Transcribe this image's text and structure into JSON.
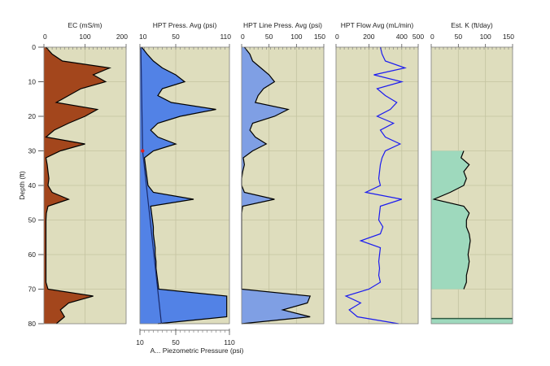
{
  "chart_data": {
    "type": "line",
    "ylabel": "Depth (ft)",
    "ylim": [
      0,
      80
    ],
    "yticks": [
      0,
      10,
      20,
      30,
      40,
      50,
      60,
      70,
      80
    ],
    "y_inverted": true,
    "grid": true,
    "background_color": "#deddbd",
    "depth": [
      0,
      2,
      4,
      6,
      8,
      10,
      12,
      14,
      16,
      18,
      20,
      22,
      24,
      26,
      28,
      30,
      32,
      34,
      36,
      38,
      40,
      42,
      44,
      46,
      48,
      50,
      52,
      54,
      56,
      58,
      60,
      62,
      64,
      66,
      68,
      70,
      72,
      74,
      76,
      78,
      80
    ],
    "tracks": [
      {
        "title": "EC (mS/m)",
        "xlim": [
          0,
          200
        ],
        "xticks": [
          0,
          100,
          200
        ],
        "fill_color": "#a3461c",
        "line_color": "#000000",
        "values": [
          5,
          20,
          45,
          160,
          120,
          150,
          90,
          60,
          30,
          130,
          100,
          60,
          25,
          5,
          100,
          40,
          5,
          8,
          10,
          12,
          10,
          20,
          60,
          10,
          6,
          5,
          5,
          5,
          5,
          5,
          5,
          5,
          5,
          5,
          5,
          10,
          120,
          60,
          40,
          50,
          30
        ]
      },
      {
        "title": "HPT Press. Avg (psi)",
        "xlim": [
          10,
          110
        ],
        "xticks": [
          10,
          50,
          110
        ],
        "fill_color": "#5282e6",
        "line_color": "#000000",
        "values": [
          12,
          18,
          25,
          35,
          50,
          60,
          35,
          30,
          45,
          95,
          55,
          30,
          22,
          30,
          50,
          25,
          15,
          16,
          17,
          18,
          19,
          25,
          70,
          22,
          23,
          24,
          25,
          25,
          26,
          27,
          27,
          28,
          28,
          29,
          30,
          31,
          107,
          107,
          107,
          107,
          30
        ],
        "secondary_axis": {
          "label": "A... Piezometric Pressure (psi)",
          "xticks": [
            10,
            50,
            110
          ],
          "line_color": "#1a2a6a",
          "points": [
            [
              0,
              11
            ],
            [
              30,
              13
            ],
            [
              80,
              34
            ]
          ],
          "marker": {
            "depth": 30,
            "value": 13,
            "color": "#e02020"
          }
        }
      },
      {
        "title": "HPT Line Press. Avg (psi)",
        "xlim": [
          0,
          150
        ],
        "xticks": [
          0,
          50,
          100,
          150
        ],
        "fill_color": "#7f9fe4",
        "line_color": "#000000",
        "values": [
          5,
          15,
          20,
          35,
          50,
          60,
          40,
          30,
          25,
          85,
          60,
          20,
          15,
          25,
          45,
          20,
          3,
          5,
          2,
          0,
          0,
          5,
          60,
          2,
          0,
          0,
          0,
          0,
          0,
          0,
          0,
          0,
          0,
          0,
          0,
          0,
          125,
          120,
          75,
          125,
          0
        ]
      },
      {
        "title": "HPT Flow Avg (mL/min)",
        "xlim": [
          0,
          500
        ],
        "xticks": [
          0,
          200,
          400,
          500
        ],
        "fill_color": null,
        "line_color": "#1c1cf0",
        "values": [
          270,
          280,
          300,
          420,
          230,
          400,
          250,
          300,
          370,
          330,
          250,
          350,
          270,
          300,
          390,
          300,
          280,
          270,
          265,
          260,
          270,
          180,
          400,
          270,
          265,
          260,
          285,
          270,
          150,
          270,
          265,
          260,
          265,
          260,
          270,
          200,
          60,
          150,
          80,
          130,
          380
        ]
      },
      {
        "title": "Est. K (ft/day)",
        "xlim": [
          0,
          150
        ],
        "xticks": [
          0,
          50,
          100,
          150
        ],
        "fill_color": "#9ed9bd",
        "line_color": "#000000",
        "values": [
          null,
          null,
          null,
          null,
          null,
          null,
          null,
          null,
          null,
          null,
          null,
          null,
          null,
          null,
          null,
          60,
          55,
          70,
          60,
          65,
          60,
          35,
          5,
          60,
          70,
          65,
          65,
          70,
          72,
          70,
          68,
          70,
          68,
          65,
          65,
          60,
          null,
          null,
          null,
          null,
          null
        ],
        "bottom_band": {
          "from_depth": 78.5,
          "to_depth": 80,
          "line_color": "#2f5a40"
        }
      }
    ]
  }
}
